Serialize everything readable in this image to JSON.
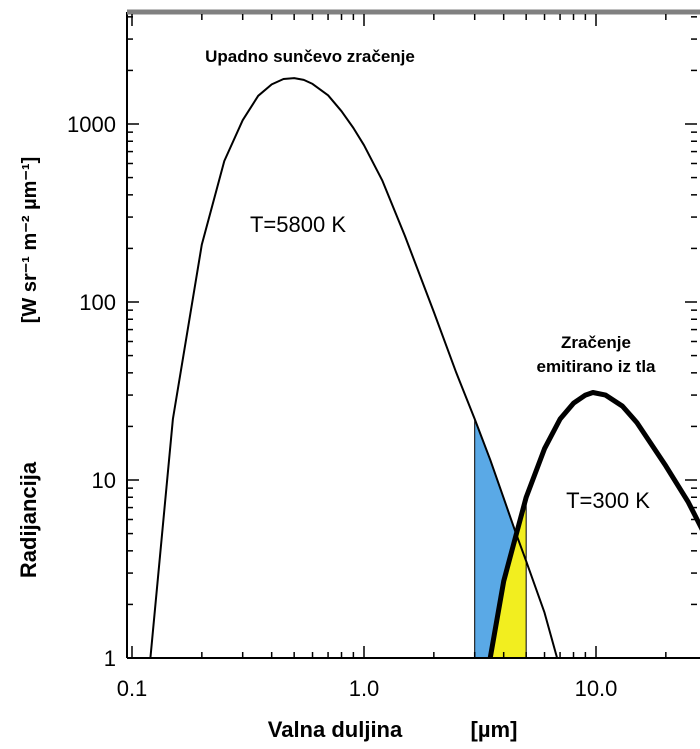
{
  "chart_data": {
    "type": "line",
    "title": "",
    "xlabel": {
      "text": "Valna duljina",
      "unit": "[µm]"
    },
    "ylabel": {
      "text": "Radijancija",
      "unit": "[W sr⁻¹ m⁻² µm⁻¹]"
    },
    "xscale": "log",
    "yscale": "log",
    "xlim": [
      0.1,
      30
    ],
    "ylim": [
      1,
      4000
    ],
    "x_tick_labels": [
      "0.1",
      "1.0",
      "10.0"
    ],
    "y_tick_labels": [
      "1",
      "10",
      "100",
      "1000"
    ],
    "series": [
      {
        "name": "Upadno sunčevo zračenje",
        "temperature_label": "T=5800 K",
        "color": "#000000",
        "points": [
          [
            0.12,
            1
          ],
          [
            0.15,
            22
          ],
          [
            0.2,
            210
          ],
          [
            0.25,
            620
          ],
          [
            0.3,
            1050
          ],
          [
            0.35,
            1440
          ],
          [
            0.4,
            1670
          ],
          [
            0.45,
            1790
          ],
          [
            0.5,
            1810
          ],
          [
            0.55,
            1770
          ],
          [
            0.6,
            1680
          ],
          [
            0.7,
            1450
          ],
          [
            0.8,
            1180
          ],
          [
            0.9,
            950
          ],
          [
            1.0,
            760
          ],
          [
            1.2,
            480
          ],
          [
            1.5,
            235
          ],
          [
            2.0,
            88
          ],
          [
            2.5,
            40
          ],
          [
            3.0,
            22
          ],
          [
            3.5,
            13
          ],
          [
            4.0,
            7.9
          ],
          [
            4.5,
            5.1
          ],
          [
            5.0,
            3.5
          ],
          [
            6.0,
            1.8
          ],
          [
            6.8,
            1
          ]
        ]
      },
      {
        "name": "Zračenje emitirano iz tla",
        "temperature_label": "T=300 K",
        "color": "#000000",
        "points": [
          [
            3.5,
            1
          ],
          [
            4.0,
            2.7
          ],
          [
            5.0,
            8
          ],
          [
            6.0,
            15
          ],
          [
            7.0,
            22
          ],
          [
            8.0,
            27
          ],
          [
            9.0,
            30
          ],
          [
            9.7,
            31
          ],
          [
            11.0,
            30
          ],
          [
            13.0,
            26
          ],
          [
            15.0,
            21
          ],
          [
            20.0,
            12
          ],
          [
            25.0,
            7.5
          ],
          [
            30.0,
            4.7
          ]
        ]
      }
    ],
    "shaded_regions": [
      {
        "fill": "#5aa9e6",
        "x_from": 3.0,
        "x_to": 5.0,
        "description": "under solar curve"
      },
      {
        "fill": "#f2ee1f",
        "x_from": 3.5,
        "x_to": 5.0,
        "description": "under ground curve"
      }
    ],
    "annotations": {
      "sun_title": "Upadno sunčevo zračenje",
      "sun_temp": "T=5800 K",
      "earth_title_line1": "Zračenje",
      "earth_title_line2": "emitirano iz tla",
      "earth_temp": "T=300 K"
    },
    "grid": false,
    "legend": "none"
  },
  "colors": {
    "axis": "#000000",
    "top_border": "#808080",
    "blue_fill": "#5aa9e6",
    "yellow_fill": "#f2ee1f"
  }
}
